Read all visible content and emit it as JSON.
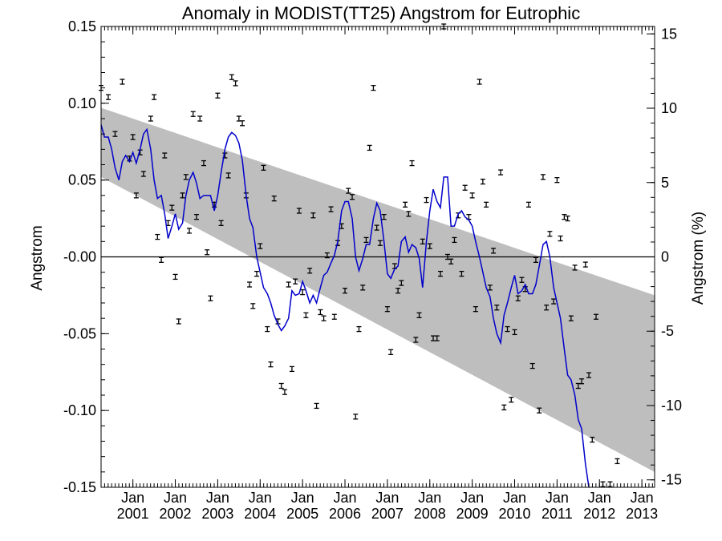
{
  "chart_data": {
    "type": "line",
    "title": "Anomaly in MODIST(TT25) Angstrom for Eutrophic",
    "ylabel_left": "Angstrom",
    "ylabel_right": "Angstrom (%)",
    "ylim_left": [
      -0.15,
      0.15
    ],
    "ylim_right": [
      -15.5,
      15.5
    ],
    "xlim": [
      2000.25,
      2013.3
    ],
    "grid": false,
    "y_ticks_left": [
      "0.15",
      "0.10",
      "0.05",
      "-0.00",
      "-0.05",
      "-0.10",
      "-0.15"
    ],
    "y_ticks_right": [
      "15",
      "10",
      "5",
      "0",
      "-5",
      "-10",
      "-15"
    ],
    "x_tick_month_label": "Jan",
    "x_ticks": [
      "2001",
      "2002",
      "2003",
      "2004",
      "2005",
      "2006",
      "2007",
      "2008",
      "2009",
      "2010",
      "2011",
      "2012",
      "2013"
    ],
    "trend_band": {
      "upper": [
        [
          2000.25,
          0.097
        ],
        [
          2013.3,
          -0.025
        ]
      ],
      "lower": [
        [
          2000.25,
          0.052
        ],
        [
          2013.3,
          -0.14
        ]
      ]
    },
    "series": [
      {
        "type": "errorbar",
        "points": [
          [
            2000.25,
            0.11
          ],
          [
            2000.42,
            0.104
          ],
          [
            2000.58,
            0.08
          ],
          [
            2000.75,
            0.114
          ],
          [
            2000.92,
            0.064
          ],
          [
            2001.0,
            0.078
          ],
          [
            2001.08,
            0.04
          ],
          [
            2001.17,
            0.068
          ],
          [
            2001.25,
            0.054
          ],
          [
            2001.42,
            0.09
          ],
          [
            2001.5,
            0.104
          ],
          [
            2001.58,
            0.013
          ],
          [
            2001.67,
            -0.002
          ],
          [
            2001.75,
            0.066
          ],
          [
            2001.83,
            0.022
          ],
          [
            2001.92,
            0.032
          ],
          [
            2002.0,
            -0.013
          ],
          [
            2002.08,
            -0.042
          ],
          [
            2002.17,
            0.04
          ],
          [
            2002.25,
            0.052
          ],
          [
            2002.33,
            0.017
          ],
          [
            2002.42,
            0.093
          ],
          [
            2002.5,
            0.026
          ],
          [
            2002.58,
            0.09
          ],
          [
            2002.67,
            0.061
          ],
          [
            2002.75,
            0.003
          ],
          [
            2002.83,
            -0.027
          ],
          [
            2002.92,
            0.034
          ],
          [
            2003.0,
            0.105
          ],
          [
            2003.08,
            0.022
          ],
          [
            2003.17,
            0.066
          ],
          [
            2003.25,
            0.053
          ],
          [
            2003.33,
            0.117
          ],
          [
            2003.42,
            0.113
          ],
          [
            2003.5,
            0.09
          ],
          [
            2003.58,
            0.087
          ],
          [
            2003.67,
            0.04
          ],
          [
            2003.75,
            -0.018
          ],
          [
            2003.83,
            -0.032
          ],
          [
            2003.92,
            -0.011
          ],
          [
            2004.0,
            0.007
          ],
          [
            2004.08,
            0.058
          ],
          [
            2004.17,
            -0.047
          ],
          [
            2004.25,
            -0.07
          ],
          [
            2004.33,
            0.038
          ],
          [
            2004.42,
            -0.042
          ],
          [
            2004.5,
            -0.084
          ],
          [
            2004.58,
            -0.088
          ],
          [
            2004.67,
            -0.018
          ],
          [
            2004.75,
            -0.073
          ],
          [
            2004.83,
            -0.016
          ],
          [
            2004.92,
            0.03
          ],
          [
            2005.0,
            -0.023
          ],
          [
            2005.08,
            -0.038
          ],
          [
            2005.17,
            -0.009
          ],
          [
            2005.25,
            0.027
          ],
          [
            2005.33,
            -0.097
          ],
          [
            2005.42,
            -0.036
          ],
          [
            2005.5,
            -0.04
          ],
          [
            2005.58,
            0.001
          ],
          [
            2005.67,
            0.031
          ],
          [
            2005.75,
            -0.039
          ],
          [
            2005.83,
            0.009
          ],
          [
            2005.92,
            0.02
          ],
          [
            2006.0,
            -0.022
          ],
          [
            2006.08,
            0.043
          ],
          [
            2006.17,
            0.039
          ],
          [
            2006.25,
            -0.104
          ],
          [
            2006.33,
            -0.047
          ],
          [
            2006.42,
            -0.02
          ],
          [
            2006.5,
            0.011
          ],
          [
            2006.58,
            0.071
          ],
          [
            2006.67,
            0.11
          ],
          [
            2006.75,
            0.019
          ],
          [
            2006.83,
            0.009
          ],
          [
            2006.92,
            0.026
          ],
          [
            2007.0,
            -0.034
          ],
          [
            2007.08,
            -0.062
          ],
          [
            2007.17,
            -0.006
          ],
          [
            2007.25,
            -0.022
          ],
          [
            2007.33,
            -0.017
          ],
          [
            2007.42,
            0.034
          ],
          [
            2007.5,
            0.028
          ],
          [
            2007.58,
            0.061
          ],
          [
            2007.67,
            -0.054
          ],
          [
            2007.75,
            -0.038
          ],
          [
            2007.83,
            0.01
          ],
          [
            2007.92,
            0.037
          ],
          [
            2008.0,
            0.007
          ],
          [
            2008.08,
            -0.053
          ],
          [
            2008.17,
            -0.053
          ],
          [
            2008.25,
            -0.011
          ],
          [
            2008.33,
            0.15
          ],
          [
            2008.42,
            0.0
          ],
          [
            2008.5,
            -0.003
          ],
          [
            2008.58,
            0.011
          ],
          [
            2008.67,
            0.027
          ],
          [
            2008.75,
            -0.011
          ],
          [
            2008.83,
            0.045
          ],
          [
            2008.92,
            0.026
          ],
          [
            2009.0,
            0.04
          ],
          [
            2009.08,
            -0.034
          ],
          [
            2009.17,
            0.114
          ],
          [
            2009.25,
            0.049
          ],
          [
            2009.33,
            0.034
          ],
          [
            2009.42,
            -0.02
          ],
          [
            2009.5,
            0.004
          ],
          [
            2009.58,
            -0.033
          ],
          [
            2009.67,
            0.055
          ],
          [
            2009.75,
            -0.098
          ],
          [
            2009.83,
            -0.047
          ],
          [
            2009.92,
            -0.093
          ],
          [
            2010.0,
            -0.049
          ],
          [
            2010.08,
            -0.027
          ],
          [
            2010.17,
            -0.015
          ],
          [
            2010.25,
            -0.021
          ],
          [
            2010.33,
            0.034
          ],
          [
            2010.42,
            -0.071
          ],
          [
            2010.5,
            -0.002
          ],
          [
            2010.58,
            -0.1
          ],
          [
            2010.67,
            0.052
          ],
          [
            2010.75,
            -0.033
          ],
          [
            2010.83,
            0.015
          ],
          [
            2010.92,
            -0.029
          ],
          [
            2011.0,
            0.05
          ],
          [
            2011.08,
            0.012
          ],
          [
            2011.17,
            0.026
          ],
          [
            2011.25,
            0.025
          ],
          [
            2011.33,
            -0.04
          ],
          [
            2011.42,
            -0.007
          ],
          [
            2011.5,
            -0.084
          ],
          [
            2011.58,
            -0.081
          ],
          [
            2011.67,
            -0.005
          ],
          [
            2011.75,
            -0.077
          ],
          [
            2011.83,
            -0.119
          ],
          [
            2011.92,
            -0.039
          ],
          [
            2012.08,
            -0.148
          ],
          [
            2012.25,
            -0.148
          ],
          [
            2012.42,
            -0.133
          ]
        ]
      },
      {
        "type": "line",
        "color": "#0000cc",
        "points": [
          [
            2000.25,
            0.086
          ],
          [
            2000.33,
            0.078
          ],
          [
            2000.42,
            0.078
          ],
          [
            2000.5,
            0.07
          ],
          [
            2000.58,
            0.058
          ],
          [
            2000.67,
            0.05
          ],
          [
            2000.75,
            0.062
          ],
          [
            2000.83,
            0.066
          ],
          [
            2000.92,
            0.062
          ],
          [
            2001.0,
            0.068
          ],
          [
            2001.08,
            0.061
          ],
          [
            2001.17,
            0.07
          ],
          [
            2001.25,
            0.08
          ],
          [
            2001.33,
            0.083
          ],
          [
            2001.42,
            0.07
          ],
          [
            2001.5,
            0.05
          ],
          [
            2001.58,
            0.038
          ],
          [
            2001.67,
            0.04
          ],
          [
            2001.75,
            0.028
          ],
          [
            2001.83,
            0.012
          ],
          [
            2001.92,
            0.02
          ],
          [
            2002.0,
            0.028
          ],
          [
            2002.08,
            0.018
          ],
          [
            2002.17,
            0.022
          ],
          [
            2002.25,
            0.04
          ],
          [
            2002.33,
            0.05
          ],
          [
            2002.42,
            0.055
          ],
          [
            2002.5,
            0.048
          ],
          [
            2002.58,
            0.038
          ],
          [
            2002.67,
            0.04
          ],
          [
            2002.75,
            0.04
          ],
          [
            2002.83,
            0.04
          ],
          [
            2002.92,
            0.03
          ],
          [
            2003.0,
            0.04
          ],
          [
            2003.08,
            0.055
          ],
          [
            2003.17,
            0.07
          ],
          [
            2003.25,
            0.078
          ],
          [
            2003.33,
            0.081
          ],
          [
            2003.42,
            0.079
          ],
          [
            2003.5,
            0.074
          ],
          [
            2003.58,
            0.063
          ],
          [
            2003.67,
            0.04
          ],
          [
            2003.75,
            0.025
          ],
          [
            2003.83,
            0.019
          ],
          [
            2003.92,
            0.0
          ],
          [
            2004.0,
            -0.01
          ],
          [
            2004.08,
            -0.02
          ],
          [
            2004.17,
            -0.024
          ],
          [
            2004.25,
            -0.03
          ],
          [
            2004.33,
            -0.038
          ],
          [
            2004.42,
            -0.044
          ],
          [
            2004.5,
            -0.048
          ],
          [
            2004.58,
            -0.045
          ],
          [
            2004.67,
            -0.04
          ],
          [
            2004.75,
            -0.022
          ],
          [
            2004.83,
            -0.025
          ],
          [
            2004.92,
            -0.024
          ],
          [
            2005.0,
            -0.016
          ],
          [
            2005.08,
            -0.022
          ],
          [
            2005.17,
            -0.03
          ],
          [
            2005.25,
            -0.025
          ],
          [
            2005.33,
            -0.03
          ],
          [
            2005.42,
            -0.02
          ],
          [
            2005.5,
            -0.012
          ],
          [
            2005.58,
            -0.01
          ],
          [
            2005.67,
            -0.004
          ],
          [
            2005.75,
            0.001
          ],
          [
            2005.83,
            0.01
          ],
          [
            2005.92,
            0.03
          ],
          [
            2006.0,
            0.036
          ],
          [
            2006.08,
            0.036
          ],
          [
            2006.17,
            0.025
          ],
          [
            2006.25,
            0.0
          ],
          [
            2006.33,
            -0.009
          ],
          [
            2006.42,
            -0.001
          ],
          [
            2006.5,
            0.008
          ],
          [
            2006.58,
            0.008
          ],
          [
            2006.67,
            0.025
          ],
          [
            2006.75,
            0.035
          ],
          [
            2006.83,
            0.03
          ],
          [
            2006.92,
            0.01
          ],
          [
            2007.0,
            -0.011
          ],
          [
            2007.08,
            -0.014
          ],
          [
            2007.17,
            -0.008
          ],
          [
            2007.25,
            -0.006
          ],
          [
            2007.33,
            0.01
          ],
          [
            2007.42,
            0.013
          ],
          [
            2007.5,
            0.003
          ],
          [
            2007.58,
            0.008
          ],
          [
            2007.67,
            0.006
          ],
          [
            2007.75,
            -0.001
          ],
          [
            2007.83,
            -0.02
          ],
          [
            2007.92,
            0.01
          ],
          [
            2008.0,
            0.03
          ],
          [
            2008.08,
            0.044
          ],
          [
            2008.17,
            0.036
          ],
          [
            2008.25,
            0.032
          ],
          [
            2008.33,
            0.052
          ],
          [
            2008.42,
            0.052
          ],
          [
            2008.5,
            0.02
          ],
          [
            2008.58,
            0.02
          ],
          [
            2008.67,
            0.028
          ],
          [
            2008.75,
            0.03
          ],
          [
            2008.83,
            0.026
          ],
          [
            2008.92,
            0.024
          ],
          [
            2009.0,
            0.02
          ],
          [
            2009.08,
            0.01
          ],
          [
            2009.17,
            0.0
          ],
          [
            2009.25,
            -0.01
          ],
          [
            2009.33,
            -0.02
          ],
          [
            2009.42,
            -0.026
          ],
          [
            2009.5,
            -0.04
          ],
          [
            2009.58,
            -0.05
          ],
          [
            2009.67,
            -0.056
          ],
          [
            2009.75,
            -0.038
          ],
          [
            2009.83,
            -0.03
          ],
          [
            2009.92,
            -0.02
          ],
          [
            2010.0,
            -0.012
          ],
          [
            2010.08,
            -0.024
          ],
          [
            2010.17,
            -0.022
          ],
          [
            2010.25,
            -0.018
          ],
          [
            2010.33,
            -0.024
          ],
          [
            2010.42,
            -0.024
          ],
          [
            2010.5,
            -0.018
          ],
          [
            2010.58,
            -0.006
          ],
          [
            2010.67,
            0.008
          ],
          [
            2010.75,
            0.01
          ],
          [
            2010.83,
            0.0
          ],
          [
            2010.92,
            -0.02
          ],
          [
            2011.0,
            -0.03
          ],
          [
            2011.08,
            -0.04
          ],
          [
            2011.17,
            -0.06
          ],
          [
            2011.25,
            -0.077
          ],
          [
            2011.33,
            -0.08
          ],
          [
            2011.42,
            -0.09
          ],
          [
            2011.5,
            -0.106
          ],
          [
            2011.58,
            -0.112
          ],
          [
            2011.67,
            -0.135
          ],
          [
            2011.75,
            -0.15
          ]
        ]
      }
    ]
  }
}
